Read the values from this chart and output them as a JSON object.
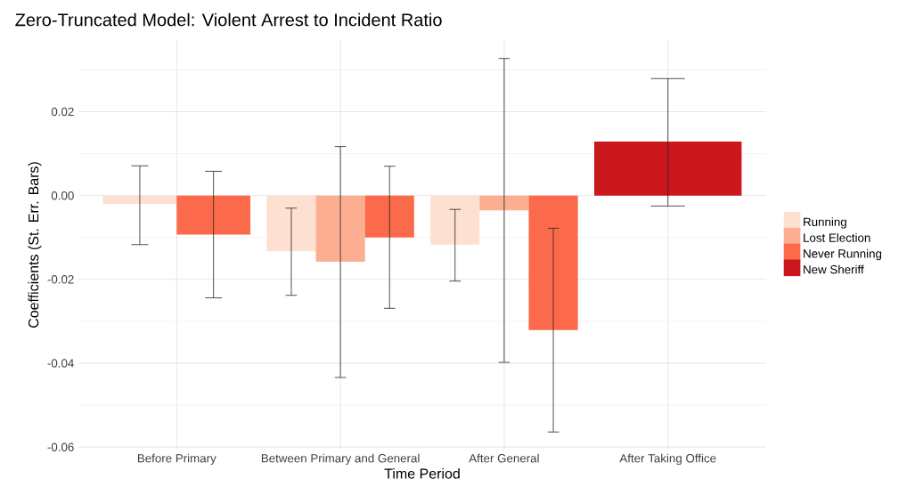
{
  "chart_data": {
    "type": "bar",
    "title": "Zero-Truncated Model: Violent Arrest to Incident Ratio",
    "xlabel": "Time Period",
    "ylabel": "Coefficients (St. Err. Bars)",
    "categories": [
      "Before Primary",
      "Between Primary and General",
      "After General",
      "After Taking Office"
    ],
    "series": [
      {
        "name": "Running",
        "color": "#fee0d2",
        "values": [
          -0.002,
          -0.0133,
          -0.0117,
          null
        ],
        "errors": [
          [
            -0.0117,
            0.0071
          ],
          [
            -0.0238,
            -0.003
          ],
          [
            -0.0204,
            -0.0033
          ],
          null
        ]
      },
      {
        "name": "Lost Election",
        "color": "#fcae91",
        "values": [
          null,
          -0.0158,
          -0.0035,
          null
        ],
        "errors": [
          null,
          [
            -0.0434,
            0.0117
          ],
          [
            -0.0398,
            0.0327
          ],
          null
        ]
      },
      {
        "name": "Never Running",
        "color": "#fb6a4a",
        "values": [
          -0.0093,
          -0.01,
          -0.0321,
          null
        ],
        "errors": [
          [
            -0.0244,
            0.0058
          ],
          [
            -0.0269,
            0.007
          ],
          [
            -0.0564,
            -0.0078
          ],
          null
        ]
      },
      {
        "name": "New Sheriff",
        "color": "#cb181d",
        "values": [
          null,
          null,
          null,
          0.0129
        ],
        "errors": [
          null,
          null,
          null,
          [
            -0.0025,
            0.0279
          ]
        ]
      }
    ],
    "ylim": [
      -0.0606,
      0.0371
    ],
    "yticks": [
      {
        "value": 0.02,
        "label": "0.02"
      },
      {
        "value": 0,
        "label": "0.00"
      },
      {
        "value": -0.02,
        "label": "-0.02"
      },
      {
        "value": -0.04,
        "label": "-0.04"
      },
      {
        "value": -0.06,
        "label": "-0.06"
      }
    ],
    "grid": true,
    "legend": "right"
  }
}
